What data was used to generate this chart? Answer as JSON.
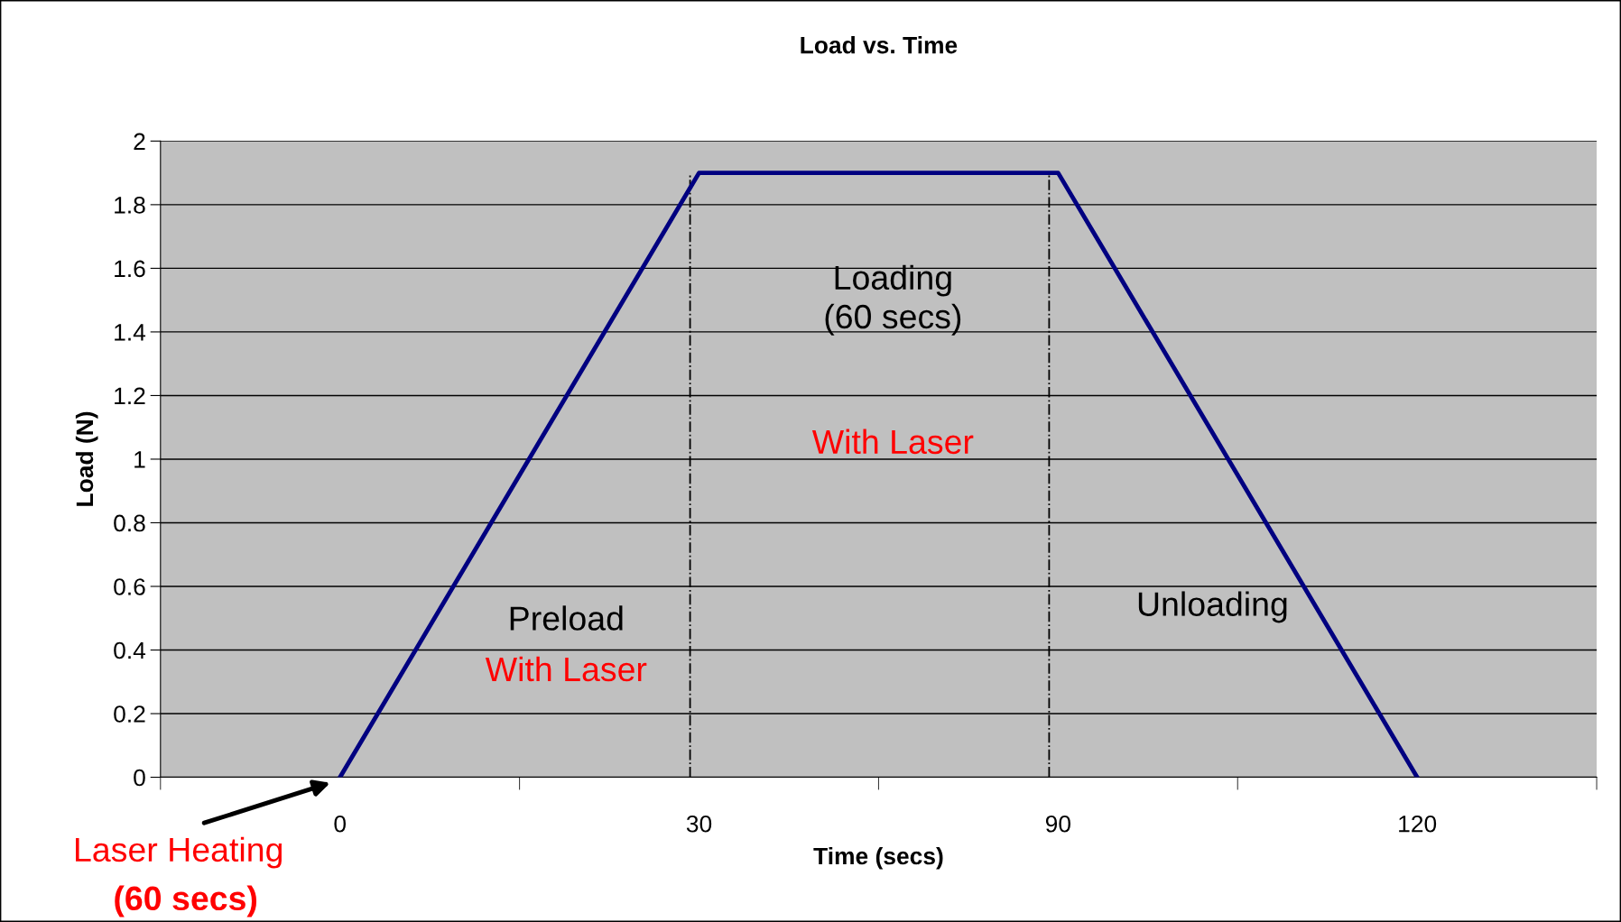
{
  "chart_data": {
    "type": "line",
    "title": "Load vs. Time",
    "xlabel": "Time (secs)",
    "ylabel": "Load (N)",
    "categories": [
      "0",
      "30",
      "90",
      "120"
    ],
    "series": [
      {
        "color": "#000080",
        "values": [
          0,
          1.9,
          1.9,
          0
        ]
      }
    ],
    "ylim": [
      0,
      2
    ],
    "yticks": [
      0,
      0.2,
      0.4,
      0.6,
      0.8,
      1,
      1.2,
      1.4,
      1.6,
      1.8,
      2
    ],
    "grid": "y",
    "legend": false,
    "marker": "none",
    "line_style": "solid",
    "ref_lines": [
      {
        "axis": "x",
        "value": "30",
        "label": null,
        "color": "#000000",
        "line_style": "dashdot"
      },
      {
        "axis": "x",
        "value": "90",
        "label": null,
        "color": "#000000",
        "line_style": "dashdot"
      }
    ],
    "annotations": [
      "Preload",
      "With Laser",
      "Loading\n(60 secs)",
      "With Laser",
      "Unloading",
      {
        "text": "Laser Heating",
        "x": "0",
        "y": 0
      },
      "(60 secs)"
    ]
  }
}
